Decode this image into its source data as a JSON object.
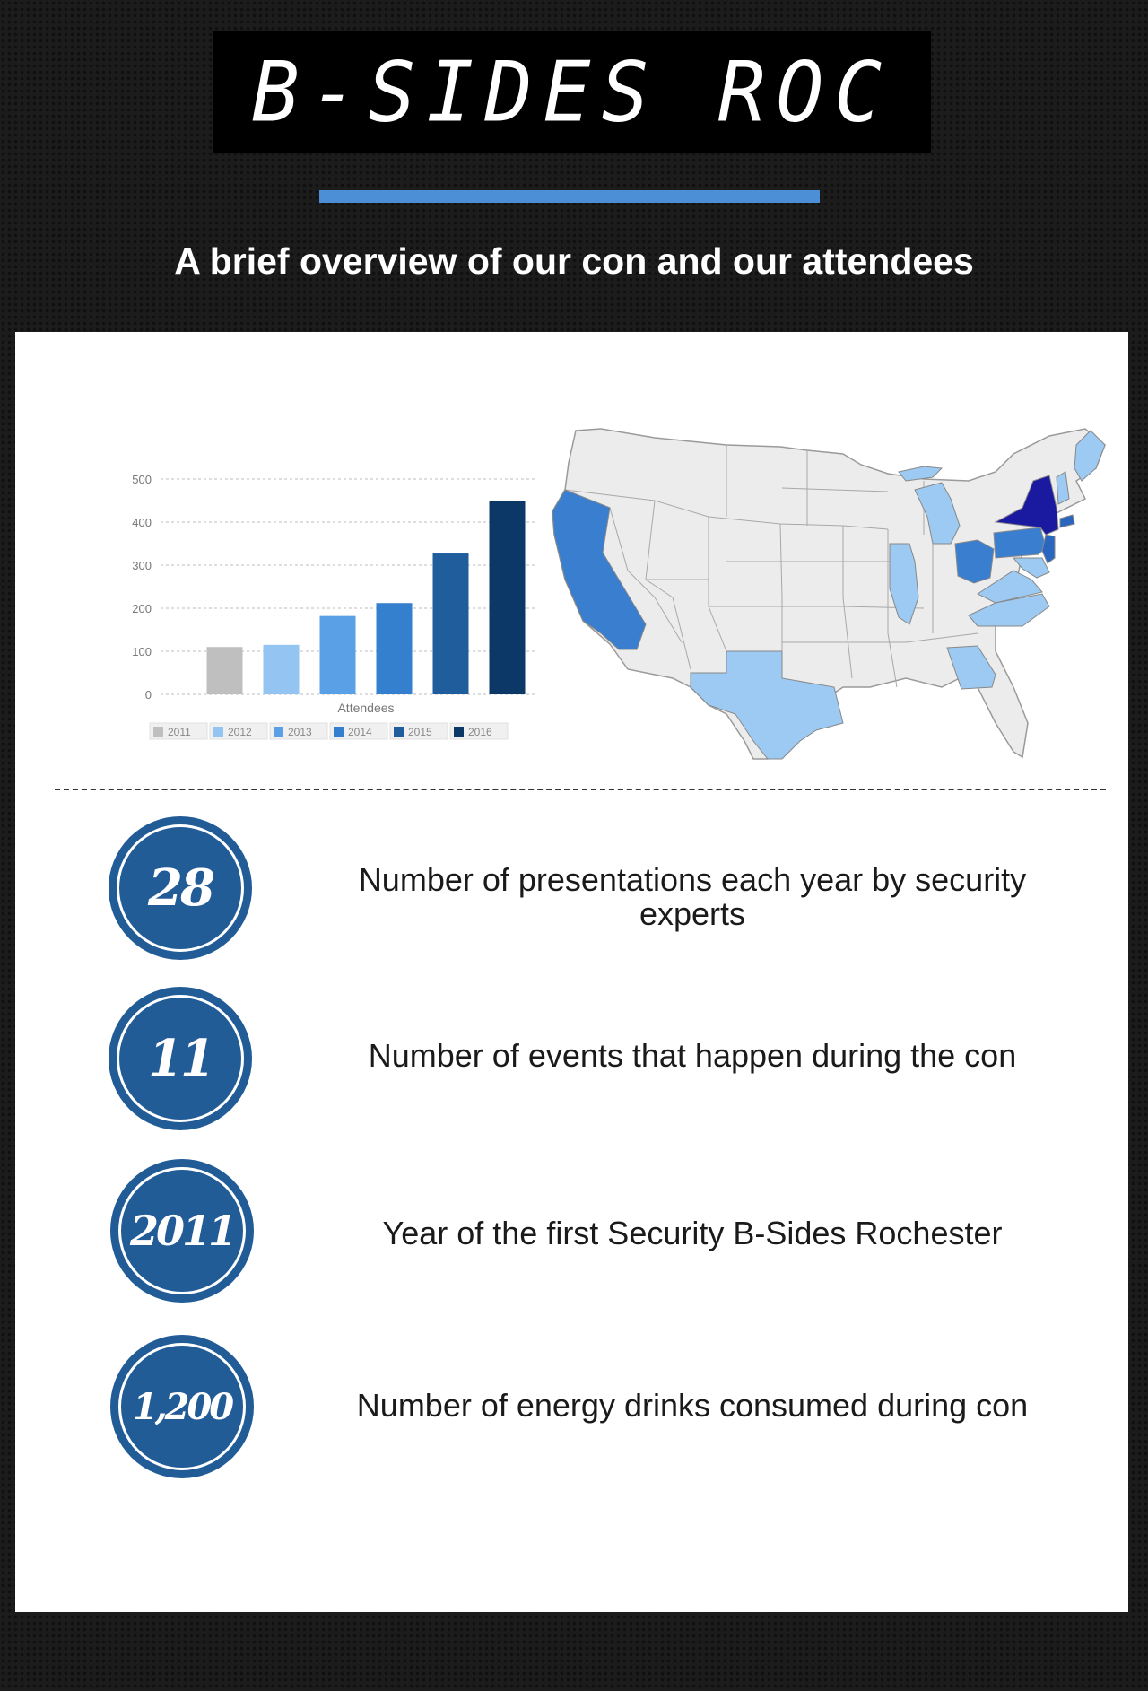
{
  "header": {
    "title": "B-SIDES ROC",
    "subtitle": "A brief overview of our con and our attendees",
    "accent_color": "#4d8fd6"
  },
  "chart_data": {
    "type": "bar",
    "categories": [
      "2011",
      "2012",
      "2013",
      "2014",
      "2015",
      "2016"
    ],
    "values": [
      110,
      115,
      182,
      212,
      327,
      450
    ],
    "colors": [
      "#bfbfbf",
      "#94c5f2",
      "#5aa0e6",
      "#3480cf",
      "#1f5d9d",
      "#0b3867"
    ],
    "xlabel": "Attendees",
    "ylabel": "",
    "ylim": [
      0,
      500
    ],
    "yticks": [
      0,
      100,
      200,
      300,
      400,
      500
    ],
    "grid": true,
    "legend": "bottom"
  },
  "map": {
    "type": "us-states-choropleth",
    "highlighted": [
      {
        "region": "New York",
        "color": "#1a1aa0"
      },
      {
        "region": "New Jersey",
        "color": "#2a66bf"
      },
      {
        "region": "Pennsylvania",
        "color": "#3a7fcf"
      },
      {
        "region": "Ohio",
        "color": "#3a7fcf"
      },
      {
        "region": "California",
        "color": "#3a7fcf"
      },
      {
        "region": "Texas",
        "color": "#9ccaf2"
      },
      {
        "region": "Georgia",
        "color": "#9ccaf2"
      },
      {
        "region": "Illinois",
        "color": "#9ccaf2"
      },
      {
        "region": "Michigan",
        "color": "#9ccaf2"
      },
      {
        "region": "Virginia",
        "color": "#9ccaf2"
      },
      {
        "region": "North Carolina",
        "color": "#9ccaf2"
      },
      {
        "region": "Maine",
        "color": "#9ccaf2"
      },
      {
        "region": "Vermont",
        "color": "#9ccaf2"
      },
      {
        "region": "Connecticut",
        "color": "#2a66bf"
      },
      {
        "region": "Maryland",
        "color": "#9ccaf2"
      },
      {
        "region": "Delaware",
        "color": "#9ccaf2"
      }
    ]
  },
  "stats": [
    {
      "value": "28",
      "text": "Number of presentations each year by security experts"
    },
    {
      "value": "11",
      "text": "Number of events that happen during the con"
    },
    {
      "value": "2011",
      "text": "Year of the first Security B-Sides Rochester"
    },
    {
      "value": "1,200",
      "text": "Number of energy drinks consumed during con"
    }
  ]
}
